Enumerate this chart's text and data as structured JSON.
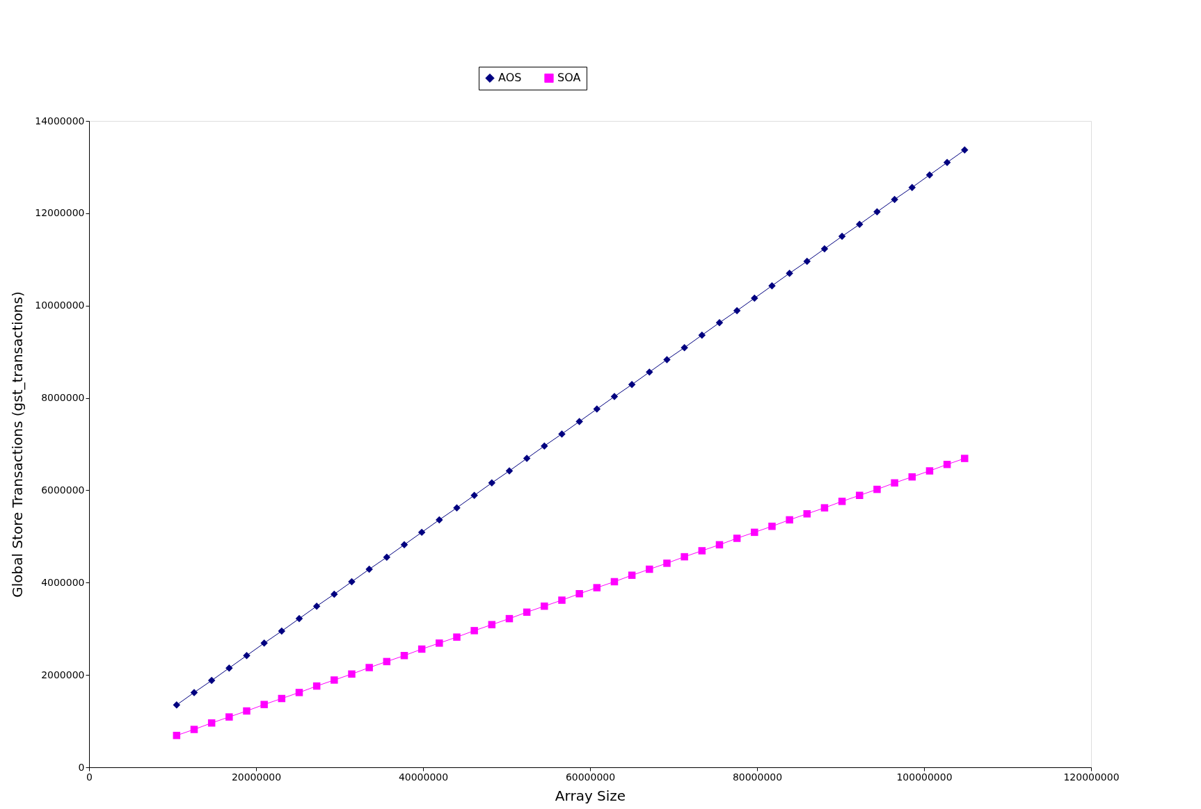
{
  "chart_data": {
    "type": "line",
    "xlabel": "Array Size",
    "ylabel": "Global Store Transactions (gst_transactions)",
    "x": [
      10485760,
      12582912,
      14680064,
      16777216,
      18874368,
      20971520,
      23068672,
      25165824,
      27262976,
      29360128,
      31457280,
      33554432,
      35651584,
      37748736,
      39845888,
      41943040,
      44040192,
      46137344,
      48234496,
      50331648,
      52428800,
      54525952,
      56623104,
      58720256,
      60817408,
      62914560,
      65011712,
      67108864,
      69206016,
      71303168,
      73400320,
      75497472,
      77594624,
      79691776,
      81788928,
      83886080,
      85983232,
      88080384,
      90177536,
      92274688,
      94371840,
      96468992,
      98566144,
      100663296,
      102760448,
      104857600
    ],
    "series": [
      {
        "name": "AOS",
        "color": "#000080",
        "marker": "diamond",
        "values": [
          1350000,
          1620000,
          1880000,
          2150000,
          2420000,
          2690000,
          2950000,
          3220000,
          3490000,
          3750000,
          4020000,
          4290000,
          4550000,
          4820000,
          5090000,
          5360000,
          5620000,
          5890000,
          6160000,
          6420000,
          6690000,
          6960000,
          7220000,
          7490000,
          7760000,
          8030000,
          8290000,
          8560000,
          8830000,
          9090000,
          9360000,
          9630000,
          9890000,
          10160000,
          10430000,
          10700000,
          10960000,
          11230000,
          11500000,
          11760000,
          12030000,
          12300000,
          12560000,
          12830000,
          13100000,
          13370000
        ]
      },
      {
        "name": "SOA",
        "color": "#ff00ff",
        "marker": "square",
        "values": [
          690000,
          820000,
          960000,
          1090000,
          1220000,
          1360000,
          1490000,
          1620000,
          1760000,
          1890000,
          2020000,
          2160000,
          2290000,
          2420000,
          2560000,
          2690000,
          2820000,
          2960000,
          3090000,
          3220000,
          3360000,
          3490000,
          3620000,
          3760000,
          3890000,
          4020000,
          4160000,
          4290000,
          4420000,
          4560000,
          4690000,
          4820000,
          4960000,
          5090000,
          5220000,
          5360000,
          5490000,
          5620000,
          5760000,
          5890000,
          6020000,
          6160000,
          6290000,
          6420000,
          6560000,
          6690000
        ]
      }
    ],
    "xlim": [
      0,
      120000000
    ],
    "xticks": [
      0,
      20000000,
      40000000,
      60000000,
      80000000,
      100000000,
      120000000
    ],
    "ylim": [
      0,
      14000000
    ],
    "yticks": [
      0,
      2000000,
      4000000,
      6000000,
      8000000,
      10000000,
      12000000,
      14000000
    ],
    "grid": false,
    "legend": "top",
    "line_style": "solid"
  }
}
